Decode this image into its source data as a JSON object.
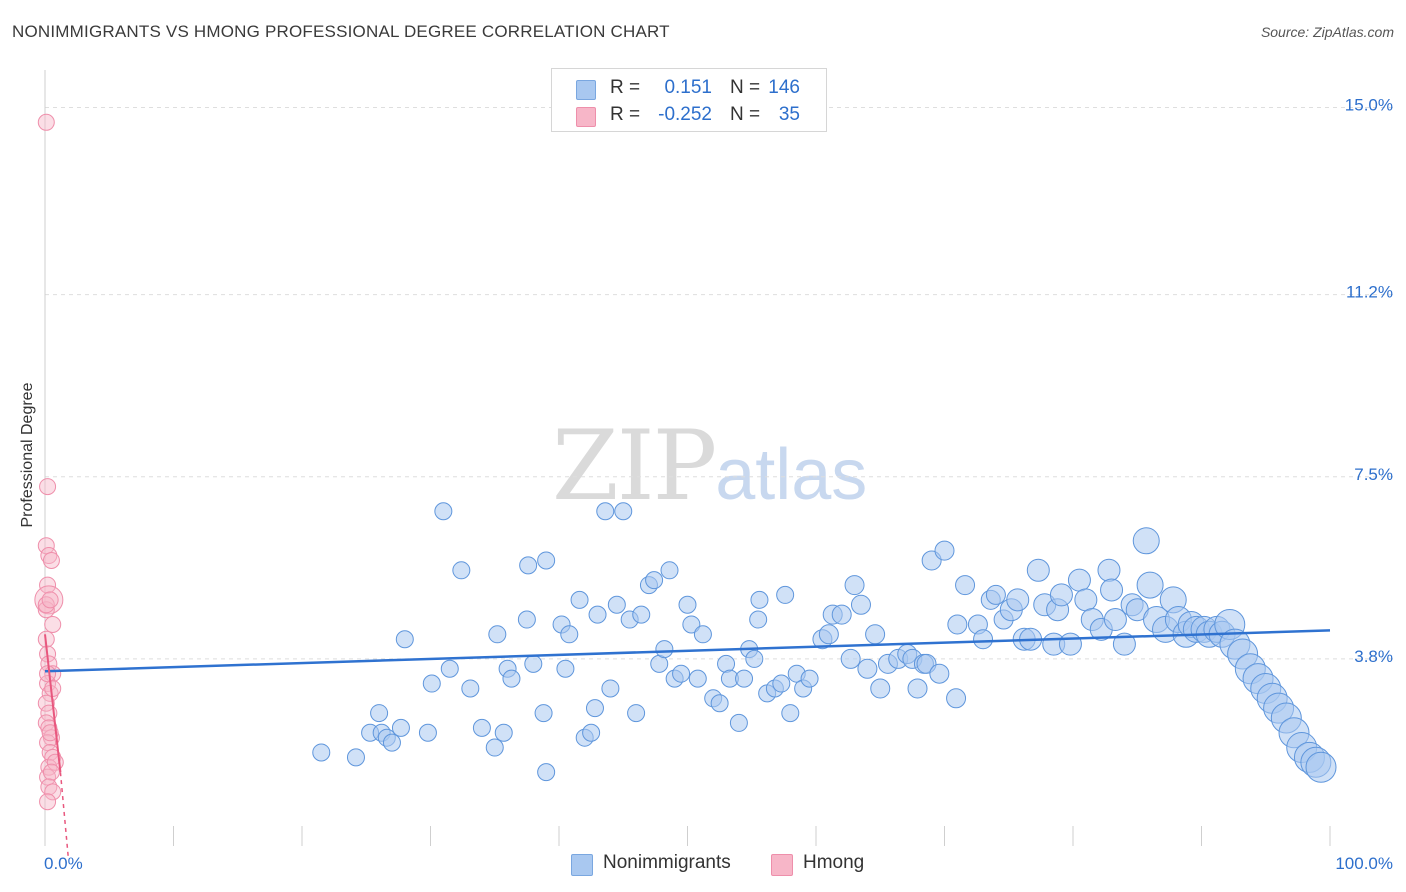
{
  "header": {
    "title": "NONIMMIGRANTS VS HMONG PROFESSIONAL DEGREE CORRELATION CHART",
    "source": "Source: ZipAtlas.com"
  },
  "watermark": {
    "zip": "ZIP",
    "atlas": "atlas"
  },
  "legend": {
    "rows": [
      {
        "r_label": "R =",
        "r_value": "0.151",
        "n_label": "N =",
        "n_value": "146",
        "color": "#a9c8f0"
      },
      {
        "r_label": "R =",
        "r_value": "-0.252",
        "n_label": "N =",
        "n_value": "35",
        "color": "#f7b6c8"
      }
    ]
  },
  "bottom_legend": [
    {
      "label": "Nonimmigrants",
      "color": "#a9c8f0"
    },
    {
      "label": "Hmong",
      "color": "#f7b6c8"
    }
  ],
  "chart_data": {
    "type": "scatter",
    "title": "NONIMMIGRANTS VS HMONG PROFESSIONAL DEGREE CORRELATION CHART",
    "xlabel": "",
    "ylabel": "Professional Degree",
    "xlim": [
      0,
      100
    ],
    "ylim": [
      0,
      15.6
    ],
    "x_tick_labels": [
      "0.0%",
      "100.0%"
    ],
    "y_ticks": [
      3.8,
      7.5,
      11.2,
      15.0
    ],
    "y_tick_labels": [
      "3.8%",
      "7.5%",
      "11.2%",
      "15.0%"
    ],
    "grid": "horizontal dashed",
    "legend_placement": "top-center",
    "colors": {
      "nonimmigrants": "#4a8fe0",
      "hmong": "#ef7fa0",
      "blue_line": "#2f72d0",
      "pink_line": "#e8577e"
    },
    "series": [
      {
        "name": "Nonimmigrants",
        "trend": {
          "x": [
            0,
            100
          ],
          "y": [
            3.55,
            4.38
          ]
        },
        "points": [
          [
            21.5,
            1.9
          ],
          [
            24.2,
            1.8
          ],
          [
            25.3,
            2.3
          ],
          [
            26.0,
            2.7
          ],
          [
            26.2,
            2.3
          ],
          [
            26.6,
            2.2
          ],
          [
            27.0,
            2.1
          ],
          [
            27.7,
            2.4
          ],
          [
            28.0,
            4.2
          ],
          [
            30.1,
            3.3
          ],
          [
            29.8,
            2.3
          ],
          [
            31.0,
            6.8
          ],
          [
            31.5,
            3.6
          ],
          [
            32.4,
            5.6
          ],
          [
            33.1,
            3.2
          ],
          [
            34.0,
            2.4
          ],
          [
            35.0,
            2.0
          ],
          [
            35.2,
            4.3
          ],
          [
            35.7,
            2.3
          ],
          [
            36.0,
            3.6
          ],
          [
            36.3,
            3.4
          ],
          [
            37.5,
            4.6
          ],
          [
            37.6,
            5.7
          ],
          [
            38.0,
            3.7
          ],
          [
            38.8,
            2.7
          ],
          [
            39.0,
            1.5
          ],
          [
            39.0,
            5.8
          ],
          [
            40.2,
            4.5
          ],
          [
            40.5,
            3.6
          ],
          [
            40.8,
            4.3
          ],
          [
            41.6,
            5.0
          ],
          [
            42.0,
            2.2
          ],
          [
            42.5,
            2.3
          ],
          [
            42.8,
            2.8
          ],
          [
            43.0,
            4.7
          ],
          [
            43.6,
            6.8
          ],
          [
            44.0,
            3.2
          ],
          [
            44.5,
            4.9
          ],
          [
            45.0,
            6.8
          ],
          [
            45.5,
            4.6
          ],
          [
            46.0,
            2.7
          ],
          [
            46.4,
            4.7
          ],
          [
            47.0,
            5.3
          ],
          [
            47.4,
            5.4
          ],
          [
            47.8,
            3.7
          ],
          [
            48.2,
            4.0
          ],
          [
            48.6,
            5.6
          ],
          [
            49.0,
            3.4
          ],
          [
            49.5,
            3.5
          ],
          [
            50.0,
            4.9
          ],
          [
            50.3,
            4.5
          ],
          [
            50.8,
            3.4
          ],
          [
            51.2,
            4.3
          ],
          [
            52.0,
            3.0
          ],
          [
            52.5,
            2.9
          ],
          [
            53.0,
            3.7
          ],
          [
            53.3,
            3.4
          ],
          [
            54.0,
            2.5
          ],
          [
            54.4,
            3.4
          ],
          [
            54.8,
            4.0
          ],
          [
            55.2,
            3.8
          ],
          [
            55.5,
            4.6
          ],
          [
            55.6,
            5.0
          ],
          [
            56.2,
            3.1
          ],
          [
            56.8,
            3.2
          ],
          [
            57.3,
            3.3
          ],
          [
            57.6,
            5.1
          ],
          [
            58.0,
            2.7
          ],
          [
            58.5,
            3.5
          ],
          [
            59.0,
            3.2
          ],
          [
            59.5,
            3.4
          ],
          [
            60.5,
            4.2
          ],
          [
            61.0,
            4.3
          ],
          [
            61.3,
            4.7
          ],
          [
            62.0,
            4.7
          ],
          [
            62.7,
            3.8
          ],
          [
            63.0,
            5.3
          ],
          [
            63.5,
            4.9
          ],
          [
            64.0,
            3.6
          ],
          [
            64.6,
            4.3
          ],
          [
            65.0,
            3.2
          ],
          [
            65.6,
            3.7
          ],
          [
            66.4,
            3.8
          ],
          [
            67.1,
            3.9
          ],
          [
            67.5,
            3.8
          ],
          [
            67.9,
            3.2
          ],
          [
            68.4,
            3.7
          ],
          [
            68.6,
            3.7
          ],
          [
            69.0,
            5.8
          ],
          [
            70.0,
            6.0
          ],
          [
            69.6,
            3.5
          ],
          [
            70.9,
            3.0
          ],
          [
            71.0,
            4.5
          ],
          [
            71.6,
            5.3
          ],
          [
            72.6,
            4.5
          ],
          [
            73.0,
            4.2
          ],
          [
            73.6,
            5.0
          ],
          [
            74.0,
            5.1
          ],
          [
            74.6,
            4.6
          ],
          [
            75.2,
            4.8
          ],
          [
            75.7,
            5.0
          ],
          [
            76.2,
            4.2
          ],
          [
            76.7,
            4.2
          ],
          [
            77.3,
            5.6
          ],
          [
            77.8,
            4.9
          ],
          [
            78.5,
            4.1
          ],
          [
            78.8,
            4.8
          ],
          [
            79.1,
            5.1
          ],
          [
            79.8,
            4.1
          ],
          [
            80.5,
            5.4
          ],
          [
            81.0,
            5.0
          ],
          [
            81.5,
            4.6
          ],
          [
            82.2,
            4.4
          ],
          [
            82.8,
            5.6
          ],
          [
            83.0,
            5.2
          ],
          [
            83.3,
            4.6
          ],
          [
            84.0,
            4.1
          ],
          [
            84.6,
            4.9
          ],
          [
            85.0,
            4.8
          ],
          [
            85.7,
            6.2
          ],
          [
            86.0,
            5.3
          ],
          [
            86.5,
            4.6
          ],
          [
            87.2,
            4.4
          ],
          [
            87.8,
            5.0
          ],
          [
            88.2,
            4.6
          ],
          [
            88.8,
            4.3
          ],
          [
            89.2,
            4.5
          ],
          [
            89.6,
            4.4
          ],
          [
            90.2,
            4.4
          ],
          [
            90.6,
            4.3
          ],
          [
            91.2,
            4.4
          ],
          [
            91.6,
            4.3
          ],
          [
            92.2,
            4.5
          ],
          [
            92.6,
            4.1
          ],
          [
            93.2,
            3.9
          ],
          [
            93.8,
            3.6
          ],
          [
            94.4,
            3.4
          ],
          [
            95.0,
            3.2
          ],
          [
            95.5,
            3.0
          ],
          [
            96.0,
            2.8
          ],
          [
            96.6,
            2.6
          ],
          [
            97.2,
            2.3
          ],
          [
            97.8,
            2.0
          ],
          [
            98.4,
            1.8
          ],
          [
            98.9,
            1.7
          ],
          [
            99.3,
            1.6
          ]
        ]
      },
      {
        "name": "Hmong",
        "trend": {
          "x": [
            0,
            1.8
          ],
          "y": [
            4.3,
            -0.2
          ]
        },
        "points": [
          [
            0.1,
            14.7
          ],
          [
            0.2,
            7.3
          ],
          [
            0.1,
            6.1
          ],
          [
            0.3,
            5.9
          ],
          [
            0.5,
            5.8
          ],
          [
            0.2,
            5.3
          ],
          [
            0.3,
            5.0
          ],
          [
            0.1,
            4.8
          ],
          [
            0.6,
            4.5
          ],
          [
            0.1,
            4.2
          ],
          [
            0.2,
            3.9
          ],
          [
            0.3,
            3.7
          ],
          [
            0.6,
            3.5
          ],
          [
            0.2,
            3.3
          ],
          [
            0.4,
            3.1
          ],
          [
            0.6,
            3.2
          ],
          [
            0.1,
            2.9
          ],
          [
            0.3,
            2.7
          ],
          [
            0.1,
            2.5
          ],
          [
            0.3,
            2.4
          ],
          [
            0.5,
            2.2
          ],
          [
            0.2,
            2.1
          ],
          [
            0.4,
            1.9
          ],
          [
            0.6,
            1.8
          ],
          [
            0.3,
            1.6
          ],
          [
            0.8,
            1.7
          ],
          [
            0.2,
            1.4
          ],
          [
            0.5,
            1.5
          ],
          [
            0.3,
            1.2
          ],
          [
            0.6,
            1.1
          ],
          [
            0.2,
            0.9
          ],
          [
            0.4,
            2.3
          ],
          [
            0.1,
            4.9
          ],
          [
            0.4,
            5.0
          ],
          [
            0.2,
            3.5
          ]
        ]
      }
    ]
  }
}
